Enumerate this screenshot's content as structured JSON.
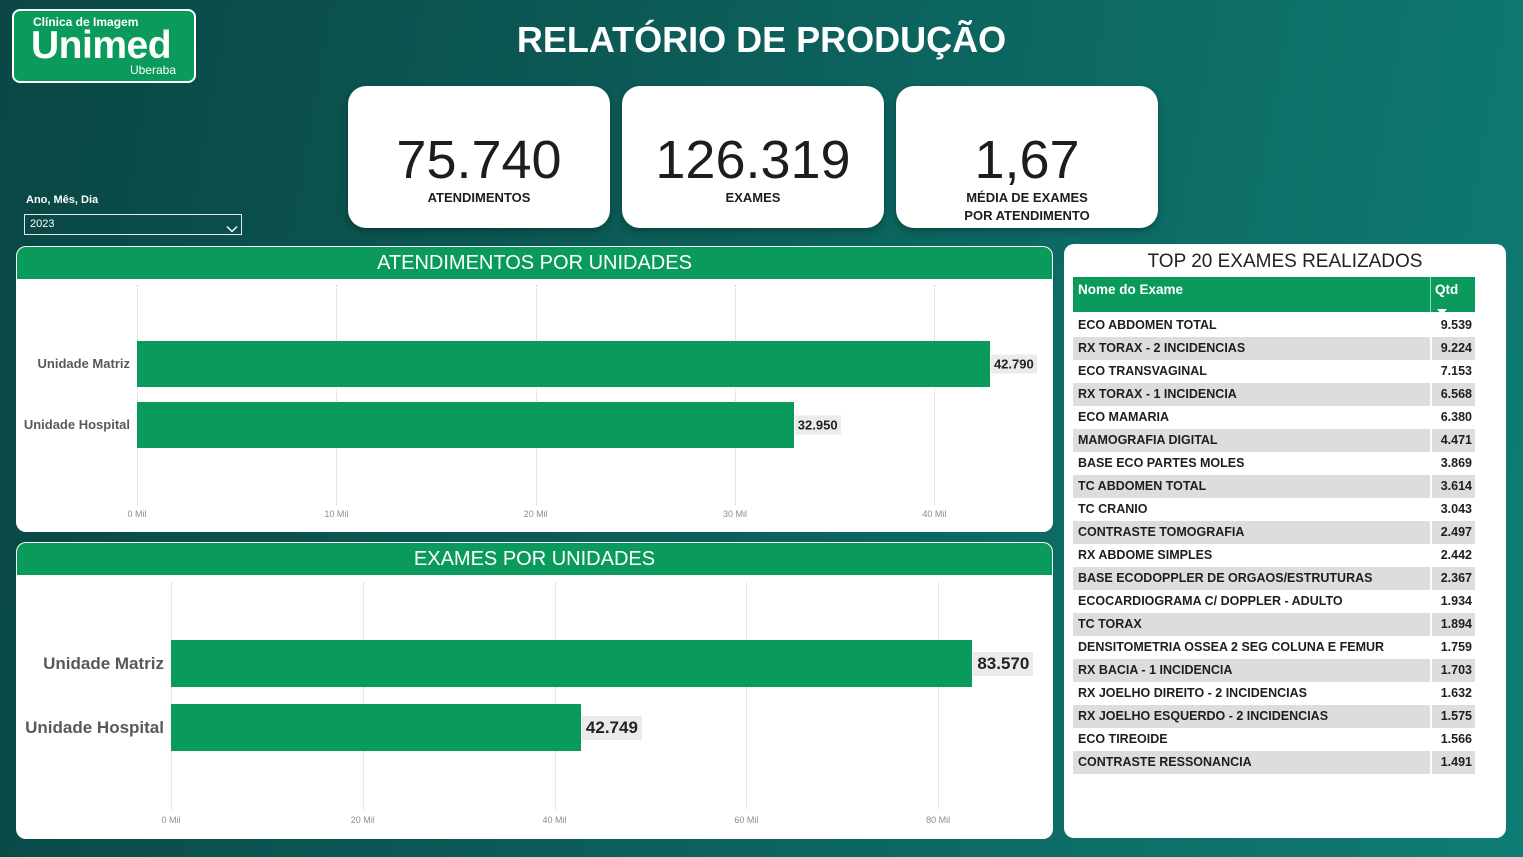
{
  "page": {
    "title": "RELATÓRIO DE PRODUÇÃO"
  },
  "logo": {
    "subtitle": "Clínica de Imagem",
    "brand": "Unimed",
    "location": "Uberaba"
  },
  "filter": {
    "label": "Ano, Mês, Dia",
    "selected": "2023",
    "icon": "chevron-down-icon"
  },
  "kpis": [
    {
      "value": "75.740",
      "label_lines": [
        "ATENDIMENTOS"
      ]
    },
    {
      "value": "126.319",
      "label_lines": [
        "EXAMES"
      ]
    },
    {
      "value": "1,67",
      "label_lines": [
        "MÉDIA DE EXAMES",
        "POR ATENDIMENTO"
      ]
    }
  ],
  "colors": {
    "background_start": "#0a4644",
    "background_mid": "#0c5e59",
    "background_end": "#0e7c74",
    "accent_green": "#0a9b5c",
    "table_row_alt": "#dcdddd",
    "category_label": "#595959",
    "data_label_box": "#ebebeb"
  },
  "chart_data": [
    {
      "type": "bar",
      "orientation": "horizontal",
      "title": "ATENDIMENTOS POR UNIDADES",
      "categories": [
        "Unidade Matriz",
        "Unidade Hospital"
      ],
      "values": [
        42790,
        32950
      ],
      "data_labels": [
        "42.790",
        "32.950"
      ],
      "x_ticks": [
        0,
        10000,
        20000,
        30000,
        40000
      ],
      "x_tick_labels": [
        "0 Mil",
        "10 Mil",
        "20 Mil",
        "30 Mil",
        "40 Mil"
      ],
      "xlim": [
        0,
        45000
      ],
      "grid": true,
      "color": "#0a9b5c"
    },
    {
      "type": "bar",
      "orientation": "horizontal",
      "title": "EXAMES POR UNIDADES",
      "categories": [
        "Unidade Matriz",
        "Unidade Hospital"
      ],
      "values": [
        83570,
        42749
      ],
      "data_labels": [
        "83.570",
        "42.749"
      ],
      "x_ticks": [
        0,
        20000,
        40000,
        60000,
        80000
      ],
      "x_tick_labels": [
        "0 Mil",
        "20 Mil",
        "40 Mil",
        "60 Mil",
        "80 Mil"
      ],
      "xlim": [
        0,
        90000
      ],
      "grid": true,
      "color": "#0a9b5c"
    },
    {
      "type": "table",
      "title": "TOP 20 EXAMES REALIZADOS",
      "columns": [
        "Nome do Exame",
        "Qtd"
      ],
      "sort_icon": "sort-descending-icon",
      "rows": [
        {
          "name": "ECO ABDOMEN TOTAL",
          "qtd": "9.539"
        },
        {
          "name": "RX TORAX - 2 INCIDENCIAS",
          "qtd": "9.224"
        },
        {
          "name": "ECO TRANSVAGINAL",
          "qtd": "7.153"
        },
        {
          "name": "RX TORAX - 1 INCIDENCIA",
          "qtd": "6.568"
        },
        {
          "name": "ECO MAMARIA",
          "qtd": "6.380"
        },
        {
          "name": "MAMOGRAFIA DIGITAL",
          "qtd": "4.471"
        },
        {
          "name": "BASE ECO PARTES MOLES",
          "qtd": "3.869"
        },
        {
          "name": "TC ABDOMEN TOTAL",
          "qtd": "3.614"
        },
        {
          "name": "TC CRANIO",
          "qtd": "3.043"
        },
        {
          "name": "CONTRASTE TOMOGRAFIA",
          "qtd": "2.497"
        },
        {
          "name": "RX ABDOME SIMPLES",
          "qtd": "2.442"
        },
        {
          "name": "BASE ECODOPPLER DE ORGAOS/ESTRUTURAS",
          "qtd": "2.367"
        },
        {
          "name": "ECOCARDIOGRAMA C/ DOPPLER - ADULTO",
          "qtd": "1.934"
        },
        {
          "name": "TC TORAX",
          "qtd": "1.894"
        },
        {
          "name": "DENSITOMETRIA OSSEA 2 SEG COLUNA E FEMUR",
          "qtd": "1.759"
        },
        {
          "name": "RX BACIA - 1 INCIDENCIA",
          "qtd": "1.703"
        },
        {
          "name": "RX JOELHO DIREITO - 2 INCIDENCIAS",
          "qtd": "1.632"
        },
        {
          "name": "RX JOELHO ESQUERDO - 2 INCIDENCIAS",
          "qtd": "1.575"
        },
        {
          "name": "ECO TIREOIDE",
          "qtd": "1.566"
        },
        {
          "name": "CONTRASTE RESSONANCIA",
          "qtd": "1.491"
        }
      ]
    }
  ]
}
